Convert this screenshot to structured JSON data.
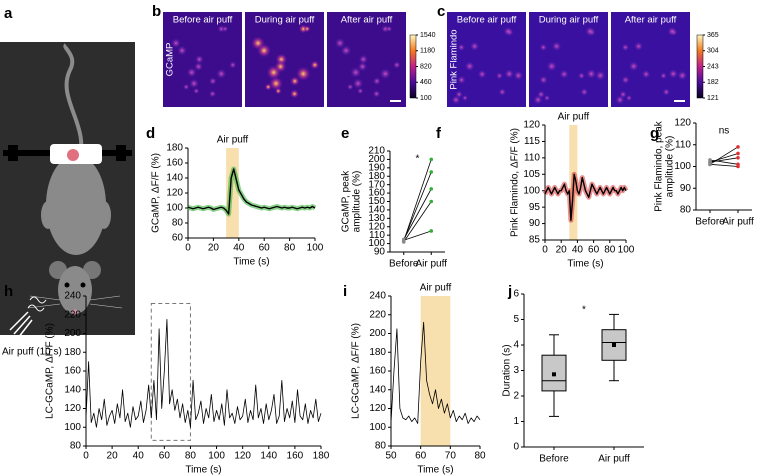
{
  "figure": {
    "panel_letters": [
      "a",
      "b",
      "c",
      "d",
      "e",
      "f",
      "g",
      "h",
      "i",
      "j"
    ],
    "a": {
      "air_puff_label": "Air puff (10 s)"
    },
    "b": {
      "image_labels": [
        "Before air puff",
        "During air puff",
        "After air puff"
      ],
      "indicator": "GCaMP",
      "colorbar": {
        "lim": [
          100,
          1540
        ],
        "ticks": [
          100,
          460,
          820,
          1180,
          1540
        ]
      }
    },
    "c": {
      "image_labels": [
        "Before air puff",
        "During air puff",
        "After air puff"
      ],
      "indicator": "Pink Flamindo",
      "colorbar": {
        "lim": [
          121,
          365
        ],
        "ticks": [
          121,
          182,
          243,
          304,
          365
        ]
      }
    }
  },
  "chart_data": [
    {
      "type": "line",
      "xlabel": "Time (s)",
      "ylabel": [
        "GCaMP, ΔF/F (%)"
      ],
      "xlim": [
        0,
        100
      ],
      "xticks": [
        0,
        20,
        40,
        60,
        80,
        100
      ],
      "ylim": [
        60,
        180
      ],
      "yticks": [
        60,
        80,
        100,
        120,
        140,
        160,
        180
      ],
      "shade": [
        30,
        40
      ],
      "shade_color": "#f8dfae",
      "annotation": "Air puff",
      "band_color": "#3cb43c",
      "x": [
        0,
        2,
        4,
        6,
        8,
        10,
        12,
        14,
        16,
        18,
        20,
        22,
        24,
        26,
        28,
        30,
        32,
        34,
        36,
        38,
        40,
        42,
        44,
        46,
        48,
        50,
        52,
        54,
        56,
        58,
        60,
        62,
        64,
        66,
        68,
        70,
        72,
        74,
        76,
        78,
        80,
        82,
        84,
        86,
        88,
        90,
        92,
        94,
        96,
        98,
        100
      ],
      "series": [
        {
          "color": "#000000",
          "values": [
            101,
            100,
            99,
            100,
            101,
            100,
            99,
            100,
            101,
            100,
            98,
            99,
            100,
            101,
            100,
            97,
            92,
            140,
            152,
            138,
            124,
            118,
            112,
            108,
            106,
            104,
            103,
            102,
            101,
            100,
            101,
            100,
            99,
            100,
            101,
            102,
            101,
            100,
            101,
            100,
            100,
            101,
            100,
            99,
            100,
            101,
            100,
            101,
            100,
            102,
            100
          ]
        }
      ]
    },
    {
      "type": "paired",
      "ylabel": [
        "GCaMP, peak",
        "amplitude (%)"
      ],
      "categories": [
        "Before",
        "Air puff"
      ],
      "ylim": [
        90,
        210
      ],
      "yticks": [
        90,
        100,
        110,
        120,
        130,
        140,
        150,
        160,
        170,
        180,
        190,
        200,
        210
      ],
      "annotation": "*",
      "series": [
        {
          "color": "#33b033",
          "values": [
            103,
            200
          ]
        },
        {
          "color": "#33b033",
          "values": [
            104,
            185
          ]
        },
        {
          "color": "#33b033",
          "values": [
            105,
            165
          ]
        },
        {
          "color": "#33b033",
          "values": [
            102,
            150
          ]
        },
        {
          "color": "#33b033",
          "values": [
            104,
            115
          ]
        }
      ]
    },
    {
      "type": "line",
      "xlabel": "Time (s)",
      "ylabel": [
        "Pink Flamindo, ΔF/F (%)"
      ],
      "xlim": [
        0,
        100
      ],
      "xticks": [
        0,
        20,
        40,
        60,
        80,
        100
      ],
      "ylim": [
        85,
        120
      ],
      "yticks": [
        85,
        90,
        95,
        100,
        105,
        110,
        115,
        120
      ],
      "shade": [
        30,
        40
      ],
      "shade_color": "#f8dfae",
      "annotation": "Air puff",
      "band_color": "#e04848",
      "x": [
        0,
        2,
        4,
        6,
        8,
        10,
        12,
        14,
        16,
        18,
        20,
        22,
        24,
        26,
        28,
        30,
        32,
        34,
        36,
        38,
        40,
        42,
        44,
        46,
        48,
        50,
        52,
        54,
        56,
        58,
        60,
        62,
        64,
        66,
        68,
        70,
        72,
        74,
        76,
        78,
        80,
        82,
        84,
        86,
        88,
        90,
        92,
        94,
        96,
        98,
        100
      ],
      "series": [
        {
          "color": "#000000",
          "values": [
            99,
            100,
            101,
            100,
            99,
            100,
            101,
            100,
            99,
            100,
            100,
            101,
            102,
            100,
            99,
            100,
            91,
            97,
            105,
            103,
            100,
            99,
            101,
            104,
            102,
            100,
            99,
            98,
            100,
            102,
            101,
            100,
            99,
            100,
            101,
            100,
            99,
            100,
            101,
            100,
            99,
            100,
            101,
            100,
            100,
            99,
            100,
            101,
            100,
            101,
            100
          ]
        }
      ]
    },
    {
      "type": "paired",
      "ylabel": [
        "Pink Flamindo, peak",
        "amplitude (%)"
      ],
      "categories": [
        "Before",
        "Air puff"
      ],
      "ylim": [
        80,
        120
      ],
      "yticks": [
        80,
        90,
        100,
        110,
        120
      ],
      "annotation": "ns",
      "series": [
        {
          "color": "#e03030",
          "values": [
            101,
            109
          ]
        },
        {
          "color": "#e03030",
          "values": [
            102,
            106
          ]
        },
        {
          "color": "#e03030",
          "values": [
            102,
            104
          ]
        },
        {
          "color": "#e03030",
          "values": [
            103,
            101
          ]
        },
        {
          "color": "#e03030",
          "values": [
            101,
            100
          ]
        }
      ]
    },
    {
      "type": "line",
      "xlabel": "Time (s)",
      "ylabel": [
        "LC-GCaMP, ΔF/F (%)"
      ],
      "xlim": [
        0,
        180
      ],
      "xticks": [
        0,
        20,
        40,
        60,
        80,
        100,
        120,
        140,
        160,
        180
      ],
      "ylim": [
        80,
        240
      ],
      "yticks": [
        80,
        100,
        120,
        140,
        160,
        180,
        200,
        220,
        240
      ],
      "highlight": {
        "xlim": [
          50,
          80
        ],
        "ylim": [
          86,
          232
        ]
      },
      "x": [
        0,
        2,
        4,
        6,
        8,
        10,
        12,
        14,
        16,
        18,
        20,
        22,
        24,
        26,
        28,
        30,
        32,
        34,
        36,
        38,
        40,
        42,
        44,
        46,
        48,
        50,
        52,
        54,
        56,
        58,
        60,
        62,
        64,
        66,
        68,
        70,
        72,
        74,
        76,
        78,
        80,
        82,
        84,
        86,
        88,
        90,
        92,
        94,
        96,
        98,
        100,
        102,
        104,
        106,
        108,
        110,
        112,
        114,
        116,
        118,
        120,
        122,
        124,
        126,
        128,
        130,
        132,
        134,
        136,
        138,
        140,
        142,
        144,
        146,
        148,
        150,
        152,
        154,
        156,
        158,
        160,
        162,
        164,
        166,
        168,
        170,
        172,
        174,
        176,
        178,
        180
      ],
      "series": [
        {
          "color": "#000000",
          "values": [
            110,
            170,
            105,
            115,
            100,
            120,
            108,
            130,
            102,
            112,
            118,
            104,
            125,
            110,
            140,
            106,
            115,
            100,
            122,
            108,
            112,
            128,
            105,
            118,
            145,
            110,
            150,
            108,
            205,
            120,
            160,
            215,
            125,
            140,
            118,
            130,
            110,
            125,
            105,
            118,
            100,
            150,
            108,
            115,
            128,
            104,
            120,
            110,
            135,
            106,
            118,
            108,
            125,
            102,
            140,
            110,
            115,
            104,
            122,
            108,
            112,
            130,
            105,
            118,
            108,
            145,
            110,
            120,
            104,
            125,
            108,
            118,
            135,
            104,
            112,
            150,
            106,
            120,
            110,
            128,
            105,
            140,
            112,
            108,
            125,
            104,
            118,
            110,
            130,
            106,
            115
          ]
        }
      ]
    },
    {
      "type": "line",
      "xlabel": "Time (s)",
      "ylabel": [
        "LC-GCaMP, ΔF/F (%)"
      ],
      "xlim": [
        50,
        80
      ],
      "xticks": [
        50,
        60,
        70,
        80
      ],
      "ylim": [
        80,
        240
      ],
      "yticks": [
        80,
        100,
        120,
        140,
        160,
        180,
        200,
        220,
        240
      ],
      "shade": [
        60,
        70
      ],
      "shade_color": "#f8dfae",
      "annotation": "Air puff",
      "x": [
        50,
        51,
        52,
        53,
        54,
        55,
        56,
        57,
        58,
        59,
        60,
        61,
        62,
        63,
        64,
        65,
        66,
        67,
        68,
        69,
        70,
        71,
        72,
        73,
        74,
        75,
        76,
        77,
        78,
        79,
        80
      ],
      "series": [
        {
          "color": "#000000",
          "values": [
            105,
            160,
            205,
            120,
            110,
            108,
            112,
            106,
            110,
            104,
            170,
            212,
            150,
            135,
            125,
            140,
            120,
            130,
            115,
            125,
            110,
            118,
            106,
            112,
            108,
            115,
            104,
            110,
            106,
            112,
            108
          ]
        }
      ]
    },
    {
      "type": "box",
      "ylabel": [
        "Duration (s)"
      ],
      "categories": [
        "Before",
        "Air puff"
      ],
      "color": "#c8c8c8",
      "ylim": [
        0,
        6
      ],
      "yticks": [
        0,
        1,
        2,
        3,
        4,
        5,
        6
      ],
      "annotation": "*",
      "boxes": [
        {
          "min": 1.2,
          "q1": 2.2,
          "median": 2.6,
          "q3": 3.6,
          "max": 4.4,
          "mean": 2.85
        },
        {
          "min": 2.6,
          "q1": 3.4,
          "median": 4.1,
          "q3": 4.6,
          "max": 5.2,
          "mean": 4.0
        }
      ]
    }
  ]
}
